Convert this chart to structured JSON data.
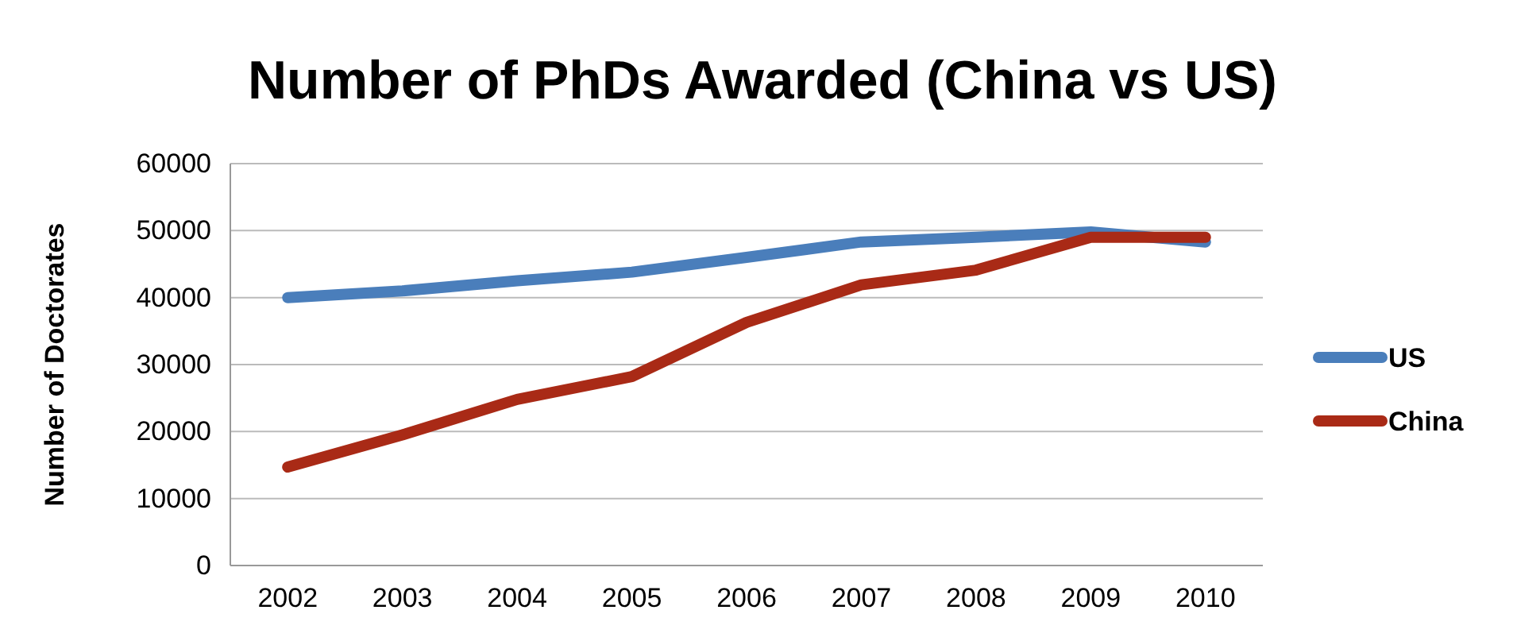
{
  "chart_data": {
    "type": "line",
    "title": "Number of PhDs Awarded (China vs US)",
    "ylabel": "Number of Doctorates",
    "categories": [
      "2002",
      "2003",
      "2004",
      "2005",
      "2006",
      "2007",
      "2008",
      "2009",
      "2010"
    ],
    "series": [
      {
        "name": "US",
        "color": "#4a7ebb",
        "values": [
          40000,
          41000,
          42500,
          43800,
          46000,
          48300,
          49000,
          49800,
          48300
        ]
      },
      {
        "name": "China",
        "color": "#a92a16",
        "values": [
          14700,
          19500,
          24800,
          28200,
          36300,
          41900,
          44100,
          49000,
          49000
        ]
      }
    ],
    "ylim": [
      0,
      60000
    ],
    "yticks": [
      0,
      10000,
      20000,
      30000,
      40000,
      50000,
      60000
    ],
    "grid": "y",
    "legend": "right",
    "marker": "none",
    "line_style": "solid"
  }
}
